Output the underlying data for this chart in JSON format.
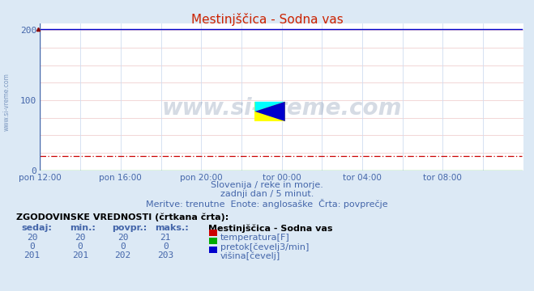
{
  "title": "Mestinjščica - Sodna vas",
  "subtitle1": "Slovenija / reke in morje.",
  "subtitle2": "zadnji dan / 5 minut.",
  "subtitle3": "Meritve: trenutne  Enote: anglosaške  Črta: povprečje",
  "watermark": "www.si-vreme.com",
  "bg_color": "#dce9f5",
  "plot_bg_color": "#ffffff",
  "grid_color_h": "#f0d0d0",
  "grid_color_v": "#d0ddf0",
  "title_color": "#cc2200",
  "text_color": "#4466aa",
  "bold_text_color": "#223388",
  "xlim": [
    0,
    288
  ],
  "ylim": [
    0,
    210
  ],
  "yticks": [
    0,
    100,
    200
  ],
  "xtick_labels": [
    "pon 12:00",
    "pon 16:00",
    "pon 20:00",
    "tor 00:00",
    "tor 04:00",
    "tor 08:00"
  ],
  "xtick_positions": [
    0,
    48,
    96,
    144,
    192,
    240
  ],
  "temp_avg": 20,
  "flow_avg": 0,
  "height_avg": 202,
  "temp_color": "#cc0000",
  "flow_color": "#00aa00",
  "height_color": "#0000cc",
  "legend_title": "Mestinjščica - Sodna vas",
  "table_header": "ZGODOVINSKE VREDNOSTI (črtkana črta):",
  "col_headers": [
    "sedaj:",
    "min.:",
    "povpr.:",
    "maks.:"
  ],
  "col_values_temp": [
    "20",
    "20",
    "20",
    "21"
  ],
  "col_values_flow": [
    "0",
    "0",
    "0",
    "0"
  ],
  "col_values_height": [
    "201",
    "201",
    "202",
    "203"
  ],
  "label_temp": "temperatura[F]",
  "label_flow": "pretok[čevelj3/min]",
  "label_height": "višina[čevelj]",
  "watermark_color": "#1a3a6a",
  "sidebar_text": "www.si-vreme.com",
  "sidebar_color": "#5577aa"
}
